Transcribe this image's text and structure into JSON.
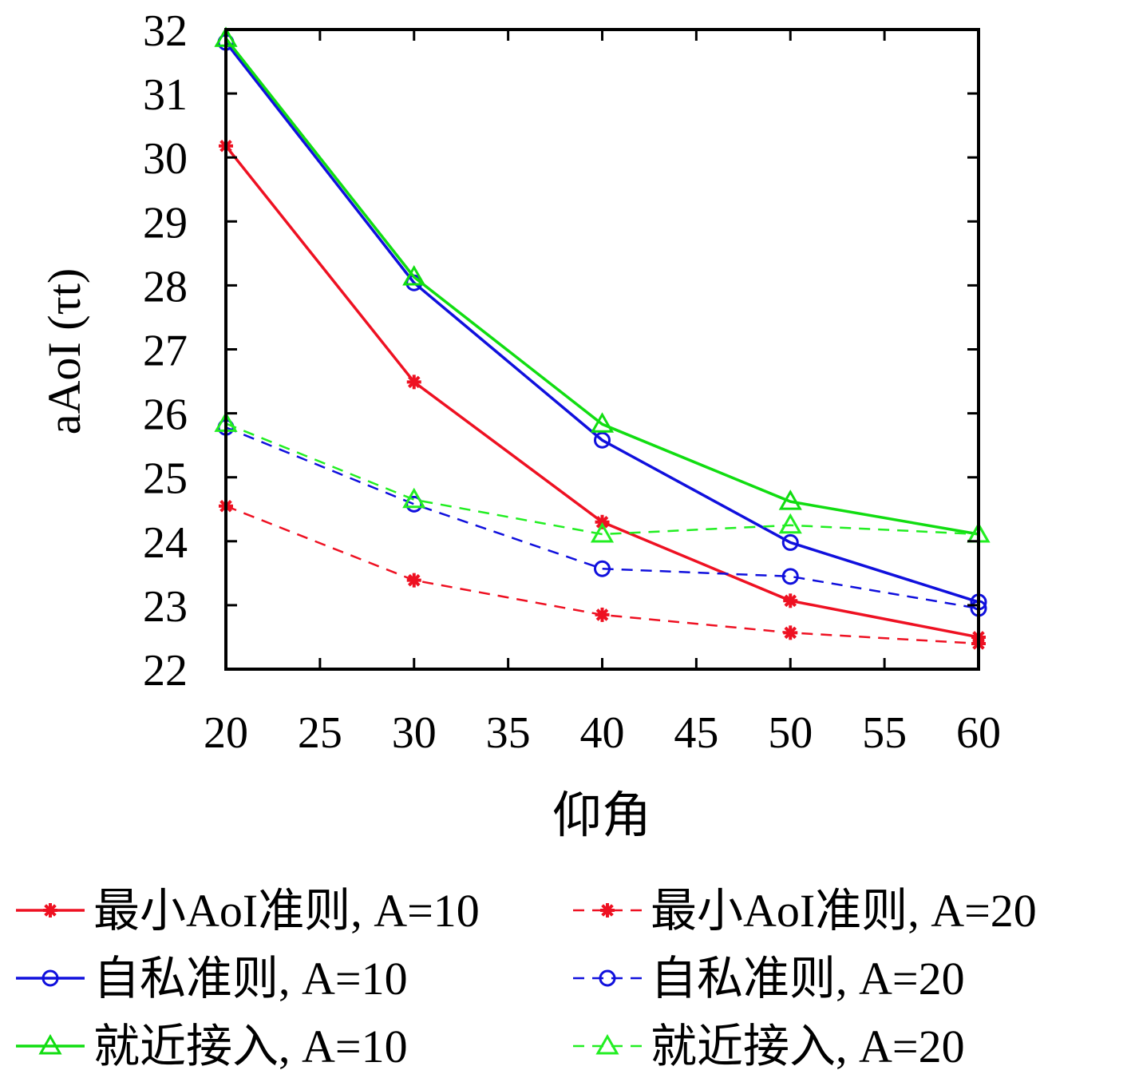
{
  "chart_data": {
    "type": "line",
    "title": "",
    "xlabel": "仰角",
    "ylabel": "aAoI (τt)",
    "xlim": [
      20,
      60
    ],
    "ylim": [
      22,
      32
    ],
    "xticks": [
      20,
      25,
      30,
      35,
      40,
      45,
      50,
      55,
      60
    ],
    "yticks": [
      22,
      23,
      24,
      25,
      26,
      27,
      28,
      29,
      30,
      31,
      32
    ],
    "grid": false,
    "legend_placement": "bottom",
    "x": [
      20,
      30,
      40,
      50,
      60
    ],
    "series": [
      {
        "name": "最小AoI准则, A=10",
        "color": "#ee1122",
        "dash": false,
        "marker": "asterisk",
        "values": [
          30.18,
          26.49,
          24.3,
          23.07,
          22.5
        ]
      },
      {
        "name": "最小AoI准则, A=20",
        "color": "#ee1122",
        "dash": true,
        "marker": "asterisk",
        "values": [
          24.55,
          23.39,
          22.85,
          22.57,
          22.4
        ]
      },
      {
        "name": "自私准则, A=10",
        "color": "#1010dd",
        "dash": false,
        "marker": "circle",
        "values": [
          31.8,
          28.04,
          25.58,
          23.98,
          23.05
        ]
      },
      {
        "name": "自私准则, A=20",
        "color": "#1010dd",
        "dash": true,
        "marker": "circle",
        "values": [
          25.78,
          24.58,
          23.57,
          23.45,
          22.95
        ]
      },
      {
        "name": "就近接入, A=10",
        "color": "#11dd11",
        "dash": false,
        "marker": "triangle",
        "values": [
          31.86,
          28.13,
          25.83,
          24.62,
          24.11
        ]
      },
      {
        "name": "就近接入, A=20",
        "color": "#22ee22",
        "dash": true,
        "marker": "triangle",
        "values": [
          25.84,
          24.65,
          24.11,
          24.25,
          24.11
        ]
      }
    ]
  }
}
